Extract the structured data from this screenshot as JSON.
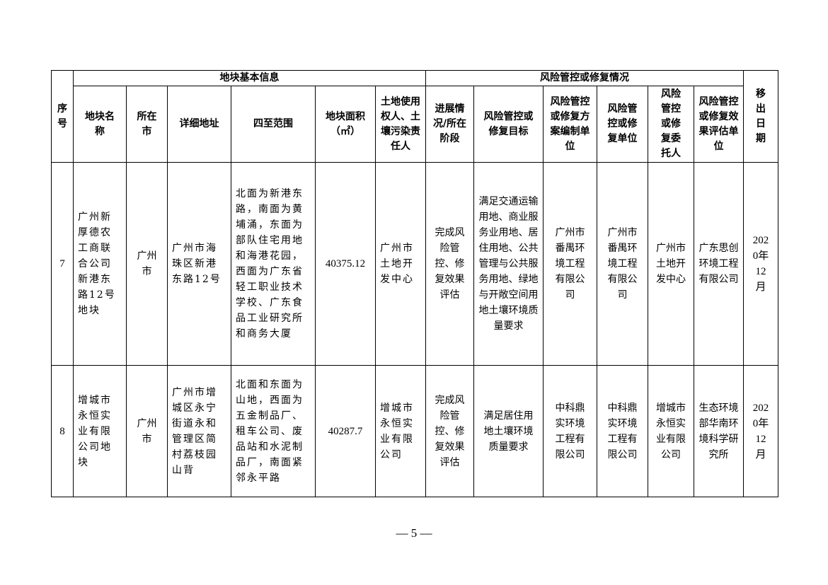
{
  "table": {
    "group_headers": {
      "basic_info": "地块基本信息",
      "risk_control": "风险管控或修复情况"
    },
    "headers": {
      "seq": "序号",
      "name": "地块名称",
      "city": "所在市",
      "address": "详细地址",
      "boundary": "四至范围",
      "area": "地块面积（㎡）",
      "owner": "土地使用权人、土壤污染责任人",
      "progress": "进展情况/所在阶段",
      "target": "风险管控或修复目标",
      "plan_unit": "风险管控或修复方案编制单位",
      "exec_unit": "风险管控或修复单位",
      "client": "风险管控或修复委托人",
      "eval_unit": "风险管控或修复效果评估单位",
      "removal_date": "移出日期"
    },
    "rows": [
      {
        "seq": "7",
        "name": "广州新厚德农工商联合公司新港东路12号地块",
        "city": "广州市",
        "address": "广州市海珠区新港东路12号",
        "boundary": "北面为新港东路，南面为黄埔涌，东面为部队住宅用地和海港花园，西面为广东省轻工职业技术学校、广东食品工业研究所和商务大厦",
        "area": "40375.12",
        "owner": "广州市土地开发中心",
        "progress": "完成风险管控、修复效果评估",
        "target": "满足交通运输用地、商业服务业用地、居住用地、公共管理与公共服务用地、绿地与开敞空间用地土壤环境质量要求",
        "plan_unit": "广州市番禺环境工程有限公司",
        "exec_unit": "广州市番禺环境工程有限公司",
        "client": "广州市土地开发中心",
        "eval_unit": "广东思创环境工程有限公司",
        "removal_date": "2020年12月"
      },
      {
        "seq": "8",
        "name": "增城市永恒实业有限公司地块",
        "city": "广州市",
        "address": "广州市增城区永宁街道永和管理区简村荔枝园山背",
        "boundary": "北面和东面为山地，西面为五金制品厂、租车公司、废品站和水泥制品厂，南面紧邻永平路",
        "area": "40287.7",
        "owner": "增城市永恒实业有限公司",
        "progress": "完成风险管控、修复效果评估",
        "target": "满足居住用地土壤环境质量要求",
        "plan_unit": "中科鼎实环境工程有限公司",
        "exec_unit": "中科鼎实环境工程有限公司",
        "client": "增城市永恒实业有限公司",
        "eval_unit": "生态环境部华南环境科学研究所",
        "removal_date": "2020年12月"
      }
    ]
  },
  "page_number": "— 5 —"
}
